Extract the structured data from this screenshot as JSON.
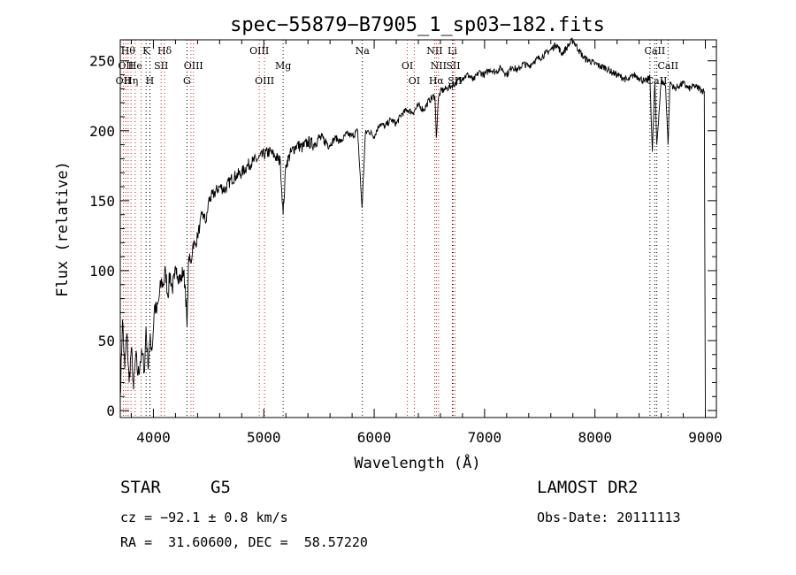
{
  "chart_data": {
    "type": "line",
    "title": "spec−55879−B7905_1_sp03−182.fits",
    "xlabel": "Wavelength (Å)",
    "ylabel": "Flux (relative)",
    "xlim": [
      3700,
      9100
    ],
    "ylim": [
      -5,
      265
    ],
    "x_ticks": [
      4000,
      5000,
      6000,
      7000,
      8000,
      9000
    ],
    "y_ticks": [
      0,
      50,
      100,
      150,
      200,
      250
    ],
    "grid": false,
    "series": [
      {
        "x": [
          3700,
          3720,
          3740,
          3760,
          3780,
          3800,
          3820,
          3840,
          3860,
          3880,
          3900,
          3920,
          3933,
          3950,
          3968,
          3990,
          4010,
          4030,
          4050,
          4070,
          4090,
          4110,
          4130,
          4150,
          4170,
          4190,
          4210,
          4230,
          4250,
          4270,
          4290,
          4305,
          4320,
          4340,
          4360,
          4380,
          4400,
          4420,
          4440,
          4460,
          4480,
          4500,
          4550,
          4600,
          4650,
          4700,
          4750,
          4800,
          4850,
          4900,
          4950,
          5000,
          5050,
          5100,
          5150,
          5175,
          5200,
          5250,
          5300,
          5350,
          5400,
          5450,
          5500,
          5550,
          5600,
          5650,
          5700,
          5750,
          5800,
          5850,
          5890,
          5920,
          5950,
          6000,
          6050,
          6100,
          6150,
          6200,
          6250,
          6300,
          6350,
          6400,
          6450,
          6500,
          6550,
          6563,
          6580,
          6600,
          6650,
          6700,
          6750,
          6800,
          6850,
          6900,
          6950,
          7000,
          7050,
          7100,
          7150,
          7200,
          7250,
          7300,
          7350,
          7400,
          7450,
          7500,
          7550,
          7600,
          7650,
          7700,
          7750,
          7800,
          7850,
          7900,
          7950,
          8000,
          8050,
          8100,
          8150,
          8200,
          8250,
          8300,
          8350,
          8400,
          8450,
          8498,
          8520,
          8542,
          8560,
          8600,
          8640,
          8662,
          8680,
          8720,
          8760,
          8800,
          8850,
          8900,
          8950,
          8990,
          9000
        ],
        "values": [
          10,
          65,
          30,
          55,
          20,
          45,
          15,
          40,
          25,
          35,
          40,
          28,
          60,
          32,
          50,
          45,
          75,
          70,
          80,
          92,
          90,
          100,
          82,
          98,
          87,
          94,
          102,
          96,
          93,
          100,
          88,
          60,
          110,
          105,
          120,
          118,
          125,
          132,
          140,
          138,
          135,
          150,
          155,
          160,
          158,
          165,
          168,
          170,
          175,
          178,
          180,
          183,
          185,
          182,
          178,
          140,
          176,
          185,
          190,
          188,
          192,
          190,
          195,
          193,
          190,
          195,
          192,
          198,
          196,
          200,
          145,
          198,
          200,
          196,
          205,
          203,
          208,
          205,
          212,
          215,
          213,
          218,
          215,
          222,
          225,
          195,
          222,
          228,
          230,
          232,
          235,
          238,
          240,
          236,
          242,
          240,
          244,
          242,
          245,
          240,
          246,
          243,
          248,
          246,
          250,
          252,
          255,
          258,
          262,
          255,
          260,
          265,
          258,
          252,
          250,
          248,
          246,
          245,
          242,
          240,
          238,
          236,
          240,
          238,
          235,
          238,
          185,
          235,
          190,
          236,
          232,
          190,
          235,
          230,
          232,
          234,
          230,
          232,
          230,
          228,
          0
        ]
      }
    ],
    "line_markers": {
      "red": [
        {
          "x": 3728,
          "label": "OII",
          "row": 3
        },
        {
          "x": 3750,
          "label": "OII",
          "row": 2
        },
        {
          "x": 3771,
          "label": "Hθ",
          "row": 1
        },
        {
          "x": 3797,
          "label": "Hη",
          "row": 3
        },
        {
          "x": 3835,
          "label": "He",
          "row": 2
        },
        {
          "x": 3889,
          "label": "",
          "row": 0
        },
        {
          "x": 3970,
          "label": "",
          "row": 0
        },
        {
          "x": 4101,
          "label": "Hδ",
          "row": 1
        },
        {
          "x": 4070,
          "label": "SII",
          "row": 2
        },
        {
          "x": 4340,
          "label": "",
          "row": 0
        },
        {
          "x": 4363,
          "label": "OIII",
          "row": 2
        },
        {
          "x": 4959,
          "label": "OIII",
          "row": 1
        },
        {
          "x": 5007,
          "label": "OIII",
          "row": 3
        },
        {
          "x": 6300,
          "label": "OI",
          "row": 2
        },
        {
          "x": 6363,
          "label": "OI",
          "row": 3
        },
        {
          "x": 6548,
          "label": "NII",
          "row": 1
        },
        {
          "x": 6583,
          "label": "NII",
          "row": 2
        },
        {
          "x": 6563,
          "label": "Hα",
          "row": 3
        },
        {
          "x": 6716,
          "label": "SII",
          "row": 2
        },
        {
          "x": 6731,
          "label": "SII",
          "row": 3
        }
      ],
      "black": [
        {
          "x": 3934,
          "label": "K",
          "row": 1
        },
        {
          "x": 3968,
          "label": "H",
          "row": 3
        },
        {
          "x": 4304,
          "label": "G",
          "row": 3
        },
        {
          "x": 5175,
          "label": "Mg",
          "row": 2
        },
        {
          "x": 5893,
          "label": "Na",
          "row": 1
        },
        {
          "x": 6708,
          "label": "Li",
          "row": 1
        },
        {
          "x": 8498,
          "label": "",
          "row": 0
        },
        {
          "x": 8542,
          "label": "CaII",
          "row": 1
        },
        {
          "x": 8662,
          "label": "CaII",
          "row": 2
        },
        {
          "x": 8560,
          "label": "CaII",
          "row": 3
        }
      ]
    }
  },
  "info": {
    "class": "STAR",
    "subclass": "G5",
    "survey": "LAMOST DR2",
    "cz": "cz = −92.1 ± 0.8 km/s",
    "obs_date": "Obs-Date: 20111113",
    "coords": "RA =  31.60600, DEC =  58.57220"
  }
}
